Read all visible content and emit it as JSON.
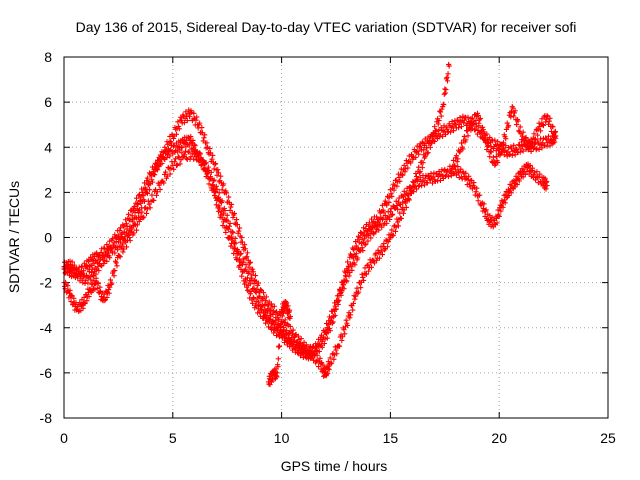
{
  "chart_data": {
    "type": "scatter",
    "title": "Day 136 of 2015, Sidereal Day-to-day VTEC variation (SDTVAR) for receiver sofi",
    "xlabel": "GPS time / hours",
    "ylabel": "SDTVAR / TECUs",
    "xlim": [
      0,
      25
    ],
    "ylim": [
      -8,
      8
    ],
    "xticks": [
      "0",
      "5",
      "10",
      "15",
      "20",
      "25"
    ],
    "yticks": [
      "-8",
      "-6",
      "-4",
      "-2",
      "0",
      "2",
      "4",
      "6",
      "8"
    ],
    "grid": true,
    "marker": "plus",
    "color": "#ff0000",
    "series": [
      {
        "x": [
          0.0,
          0.3,
          0.6,
          1.0,
          1.3,
          1.6,
          2.0,
          2.4,
          2.8,
          3.2,
          3.6,
          4.0,
          4.4,
          4.8,
          5.2,
          5.5,
          5.8,
          6.1,
          6.5,
          6.9,
          7.2,
          7.6,
          8.0,
          8.4,
          8.8,
          9.2,
          9.6,
          10.0,
          10.4,
          10.8,
          11.2,
          11.6,
          12.0,
          12.4,
          12.8,
          13.2,
          13.6,
          14.0,
          14.4,
          14.8,
          15.2,
          15.6,
          16.0,
          16.4,
          16.8,
          17.2,
          17.6,
          18.0,
          18.4,
          18.8,
          19.2,
          19.6,
          20.0,
          20.4,
          20.8,
          21.2,
          21.6,
          22.0,
          22.4,
          22.6
        ],
        "values": [
          -1.3,
          -1.5,
          -1.6,
          -1.3,
          -1.0,
          -0.8,
          -0.5,
          0.0,
          0.5,
          1.3,
          2.0,
          2.8,
          3.4,
          3.8,
          4.0,
          4.2,
          4.3,
          3.8,
          3.0,
          2.0,
          1.0,
          0.0,
          -1.0,
          -2.2,
          -3.0,
          -3.5,
          -4.0,
          -4.3,
          -4.7,
          -5.0,
          -5.2,
          -5.0,
          -4.5,
          -3.5,
          -2.0,
          -0.8,
          0.0,
          0.5,
          0.8,
          1.5,
          2.3,
          3.0,
          3.6,
          4.0,
          4.3,
          4.6,
          4.8,
          5.0,
          5.2,
          5.0,
          4.6,
          4.2,
          4.0,
          3.8,
          3.9,
          4.1,
          4.0,
          4.2,
          4.3,
          4.5
        ]
      },
      {
        "x": [
          0.0,
          0.3,
          0.6,
          1.0,
          1.4,
          1.8,
          2.2,
          2.6,
          3.0,
          3.4,
          3.8,
          4.2,
          4.6,
          5.0,
          5.4,
          5.8,
          6.2,
          6.6,
          7.0,
          7.4,
          7.8,
          8.2,
          8.6,
          9.0,
          9.4,
          9.8,
          10.2,
          10.6,
          11.0,
          11.4,
          11.8,
          12.0,
          12.2,
          12.6,
          13.0,
          13.4,
          13.8,
          14.2,
          14.6,
          15.0,
          15.4,
          15.8,
          16.2,
          16.6,
          17.0,
          17.4,
          17.7
        ],
        "values": [
          -1.4,
          -1.2,
          -1.6,
          -1.9,
          -1.5,
          -1.0,
          -0.6,
          -0.2,
          0.3,
          1.2,
          2.0,
          3.0,
          3.8,
          4.5,
          5.2,
          5.5,
          5.0,
          4.0,
          3.0,
          2.0,
          1.0,
          -0.2,
          -1.4,
          -2.4,
          -3.0,
          -3.4,
          -3.9,
          -4.4,
          -4.8,
          -5.2,
          -5.6,
          -6.1,
          -5.6,
          -4.8,
          -3.8,
          -2.6,
          -1.6,
          -1.0,
          -0.6,
          0.0,
          0.8,
          1.7,
          2.7,
          3.6,
          4.6,
          5.8,
          7.6
        ]
      },
      {
        "x": [
          0.0,
          0.3,
          0.6,
          0.9,
          1.2,
          1.5,
          1.8,
          2.1,
          2.5,
          3.0,
          3.5,
          4.0,
          4.5,
          5.0,
          5.5,
          6.0,
          6.4,
          6.8,
          7.2,
          7.6,
          8.0,
          8.4,
          8.8,
          9.2,
          9.6,
          10.0,
          10.4,
          10.8,
          11.2,
          11.6,
          12.0,
          12.4,
          12.8,
          13.2,
          13.6,
          14.0,
          14.4,
          14.8,
          15.2,
          15.6,
          16.0,
          16.4,
          16.8,
          17.2,
          17.6,
          18.0,
          18.4,
          18.8,
          19.2,
          19.5,
          19.8,
          20.1,
          20.4,
          20.7,
          21.0,
          21.3,
          21.6,
          22.0,
          22.2
        ],
        "values": [
          -2.0,
          -2.6,
          -3.2,
          -2.9,
          -2.3,
          -2.0,
          -2.8,
          -2.2,
          -0.8,
          0.0,
          0.8,
          1.6,
          2.5,
          3.2,
          3.6,
          3.7,
          3.4,
          2.6,
          1.6,
          0.5,
          -0.6,
          -1.5,
          -2.4,
          -3.2,
          -3.7,
          -4.2,
          -4.6,
          -4.9,
          -5.1,
          -4.9,
          -4.2,
          -3.2,
          -2.2,
          -1.3,
          -0.6,
          0.1,
          0.5,
          0.8,
          1.3,
          1.8,
          2.2,
          2.5,
          2.6,
          2.7,
          2.9,
          3.0,
          2.7,
          2.3,
          1.5,
          0.8,
          0.6,
          1.4,
          2.0,
          2.4,
          2.8,
          3.1,
          2.8,
          2.5,
          2.3
        ]
      },
      {
        "x": [
          17.8,
          18.2,
          18.6,
          19.0,
          19.4,
          19.8,
          20.2,
          20.6,
          21.0,
          21.4,
          21.8,
          22.2,
          22.6
        ],
        "values": [
          3.0,
          3.8,
          4.8,
          5.5,
          4.2,
          3.2,
          4.2,
          5.8,
          4.6,
          4.0,
          4.8,
          5.4,
          4.4
        ]
      },
      {
        "x": [
          9.4,
          9.6,
          9.8,
          10.0,
          10.2,
          10.4
        ],
        "values": [
          -6.4,
          -6.1,
          -6.0,
          -3.2,
          -3.0,
          -3.5
        ]
      }
    ]
  }
}
